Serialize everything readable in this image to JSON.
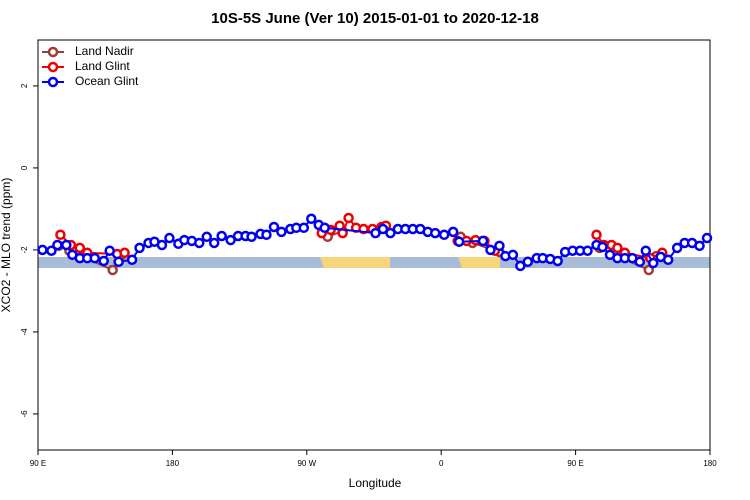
{
  "chart_data": {
    "type": "line",
    "title": "10S-5S June (Ver 10)   2015-01-01 to 2020-12-18",
    "x_label": "Longitude",
    "y_label": "XCO2 - MLO trend (ppm)",
    "xlim": [
      90,
      540
    ],
    "ylim": [
      -6.88,
      3.12
    ],
    "xticks": [
      {
        "value": 90,
        "label": "90 E"
      },
      180,
      {
        "value": 270,
        "label": "90 W"
      },
      {
        "value": 360,
        "label": "0"
      },
      {
        "value": 450,
        "label": "90 E"
      },
      {
        "value": 540,
        "label": "180"
      }
    ],
    "yticks": [
      2,
      0,
      -2,
      -4,
      -6
    ],
    "legend": "top-left",
    "series": [
      {
        "name": "Land Nadir",
        "color": "#a33a3a",
        "x": [
          104,
          111,
          140,
          146,
          null,
          284,
          294,
          null,
          373,
          381,
          399,
          null,
          466,
          499,
          504
        ],
        "values": [
          -1.9,
          -2.02,
          -2.49,
          -2.12,
          null,
          -1.68,
          -1.54,
          null,
          -1.68,
          -1.83,
          -2.05,
          null,
          -1.95,
          -2.49,
          -2.15
        ]
      },
      {
        "name": "Land Glint",
        "color": "#ee0000",
        "x": [
          105,
          112,
          118,
          123,
          143,
          148,
          null,
          280,
          286,
          292,
          294,
          298,
          303,
          308,
          314,
          320,
          323,
          null,
          371,
          377,
          383,
          389,
          396,
          null,
          464,
          469,
          474,
          478,
          483,
          500,
          508
        ],
        "values": [
          -1.63,
          -1.88,
          -1.95,
          -2.07,
          -2.1,
          -2.07,
          null,
          -1.59,
          -1.51,
          -1.41,
          -1.59,
          -1.22,
          -1.46,
          -1.49,
          -1.49,
          -1.44,
          -1.41,
          null,
          -1.78,
          -1.78,
          -1.76,
          -1.78,
          -2.02,
          null,
          -1.63,
          -1.88,
          -1.88,
          -1.95,
          -2.07,
          -2.2,
          -2.07
        ]
      },
      {
        "name": "Ocean Glint",
        "color": "#0000ee",
        "x": [
          93,
          99,
          103,
          109,
          113,
          118,
          123,
          128,
          134,
          138,
          144,
          153,
          158,
          164,
          168,
          173,
          178,
          184,
          188,
          193,
          198,
          203,
          208,
          213,
          219,
          224,
          229,
          233,
          239,
          243,
          248,
          253,
          259,
          263,
          268,
          273,
          278,
          282,
          316,
          321,
          326,
          331,
          336,
          341,
          346,
          351,
          356,
          362,
          368,
          372,
          388,
          393,
          399,
          403,
          408,
          413,
          418,
          424,
          428,
          433,
          438,
          443,
          448,
          453,
          458,
          464,
          468,
          473,
          478,
          483,
          488,
          493,
          497,
          502,
          507,
          512,
          518,
          523,
          528,
          533,
          538
        ],
        "values": [
          -2.0,
          -2.02,
          -1.88,
          -1.88,
          -2.12,
          -2.2,
          -2.2,
          -2.2,
          -2.27,
          -2.02,
          -2.29,
          -2.24,
          -1.95,
          -1.83,
          -1.8,
          -1.88,
          -1.71,
          -1.85,
          -1.76,
          -1.78,
          -1.83,
          -1.68,
          -1.83,
          -1.66,
          -1.76,
          -1.66,
          -1.66,
          -1.68,
          -1.61,
          -1.63,
          -1.44,
          -1.56,
          -1.49,
          -1.46,
          -1.46,
          -1.24,
          -1.39,
          -1.46,
          -1.59,
          -1.49,
          -1.59,
          -1.49,
          -1.49,
          -1.49,
          -1.49,
          -1.56,
          -1.59,
          -1.63,
          -1.56,
          -1.8,
          -1.78,
          -2.0,
          -1.9,
          -2.15,
          -2.12,
          -2.39,
          -2.29,
          -2.2,
          -2.2,
          -2.22,
          -2.27,
          -2.05,
          -2.02,
          -2.02,
          -2.02,
          -1.88,
          -1.93,
          -2.12,
          -2.2,
          -2.2,
          -2.2,
          -2.29,
          -2.02,
          -2.32,
          -2.17,
          -2.24,
          -1.95,
          -1.83,
          -1.83,
          -1.9,
          -1.71
        ]
      }
    ]
  }
}
